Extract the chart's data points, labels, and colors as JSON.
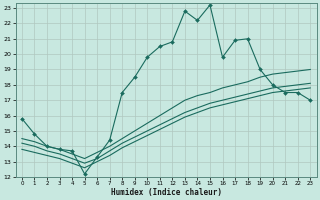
{
  "xlabel": "Humidex (Indice chaleur)",
  "xlim": [
    0,
    23
  ],
  "ylim": [
    12,
    23
  ],
  "yticks": [
    12,
    13,
    14,
    15,
    16,
    17,
    18,
    19,
    20,
    21,
    22,
    23
  ],
  "xticks": [
    0,
    1,
    2,
    3,
    4,
    5,
    6,
    7,
    8,
    9,
    10,
    11,
    12,
    13,
    14,
    15,
    16,
    17,
    18,
    19,
    20,
    21,
    22,
    23
  ],
  "bg_color": "#c8e8e0",
  "grid_color": "#b0c8c0",
  "line_color": "#1a6b5e",
  "line1_x": [
    0,
    1,
    2,
    3,
    4,
    5,
    6,
    7,
    8,
    9,
    10,
    11,
    12,
    13,
    14,
    15,
    16,
    17,
    18,
    19,
    20,
    21,
    22,
    23
  ],
  "line1_y": [
    15.8,
    14.8,
    14.0,
    13.8,
    13.7,
    12.2,
    13.3,
    14.4,
    17.5,
    18.5,
    19.8,
    20.5,
    20.8,
    22.8,
    22.2,
    23.2,
    19.8,
    20.9,
    21.0,
    19.0,
    18.0,
    17.5,
    17.5,
    17.0
  ],
  "line2_x": [
    0,
    1,
    2,
    3,
    4,
    5,
    6,
    7,
    8,
    9,
    10,
    11,
    12,
    13,
    14,
    15,
    16,
    17,
    18,
    19,
    20,
    21,
    22,
    23
  ],
  "line2_y": [
    14.5,
    14.3,
    14.0,
    13.8,
    13.5,
    13.2,
    13.6,
    14.0,
    14.5,
    15.0,
    15.5,
    16.0,
    16.5,
    17.0,
    17.3,
    17.5,
    17.8,
    18.0,
    18.2,
    18.5,
    18.7,
    18.8,
    18.9,
    19.0
  ],
  "line3_x": [
    0,
    1,
    2,
    3,
    4,
    5,
    6,
    7,
    8,
    9,
    10,
    11,
    12,
    13,
    14,
    15,
    16,
    17,
    18,
    19,
    20,
    21,
    22,
    23
  ],
  "line3_y": [
    14.2,
    14.0,
    13.7,
    13.5,
    13.2,
    12.9,
    13.2,
    13.7,
    14.2,
    14.6,
    15.0,
    15.4,
    15.8,
    16.2,
    16.5,
    16.8,
    17.0,
    17.2,
    17.4,
    17.6,
    17.8,
    17.9,
    18.0,
    18.1
  ],
  "line4_x": [
    0,
    1,
    2,
    3,
    4,
    5,
    6,
    7,
    8,
    9,
    10,
    11,
    12,
    13,
    14,
    15,
    16,
    17,
    18,
    19,
    20,
    21,
    22,
    23
  ],
  "line4_y": [
    13.8,
    13.6,
    13.4,
    13.2,
    12.9,
    12.6,
    13.0,
    13.4,
    13.9,
    14.3,
    14.7,
    15.1,
    15.5,
    15.9,
    16.2,
    16.5,
    16.7,
    16.9,
    17.1,
    17.3,
    17.5,
    17.6,
    17.7,
    17.8
  ]
}
